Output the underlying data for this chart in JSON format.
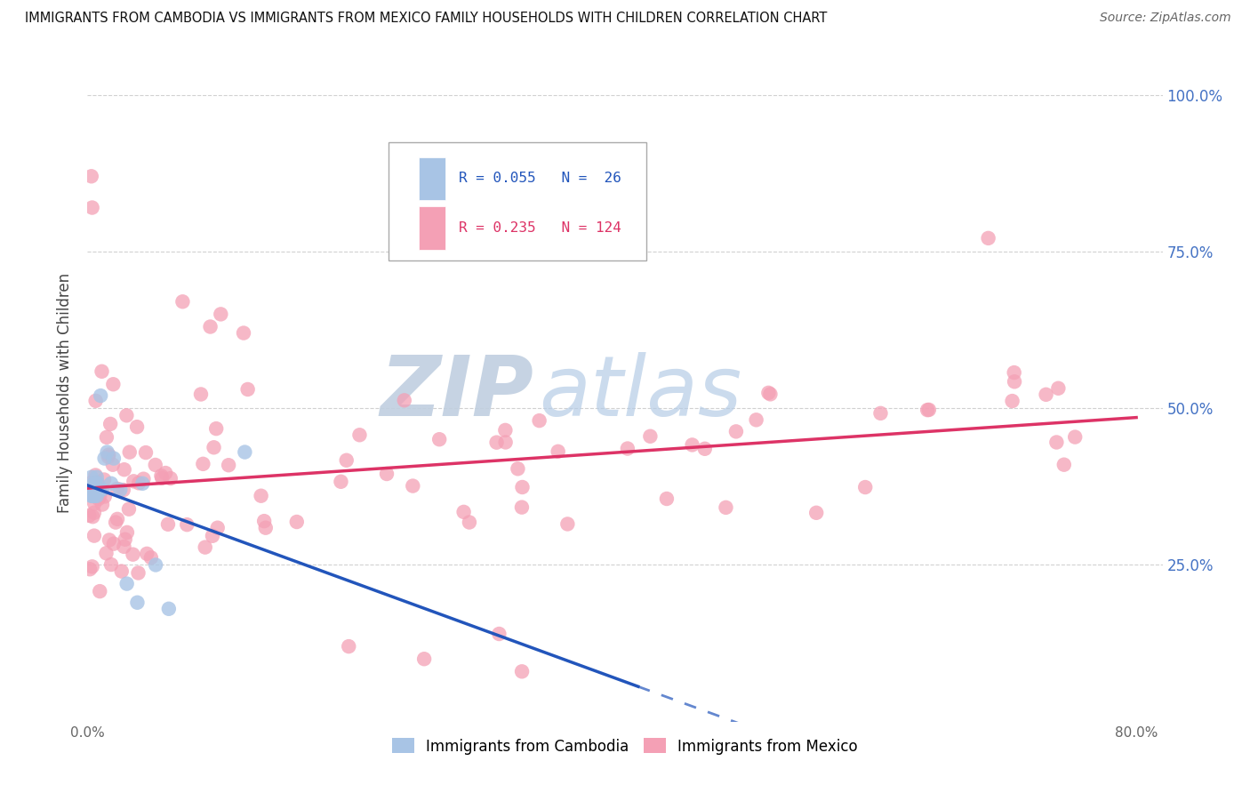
{
  "title": "IMMIGRANTS FROM CAMBODIA VS IMMIGRANTS FROM MEXICO FAMILY HOUSEHOLDS WITH CHILDREN CORRELATION CHART",
  "source": "Source: ZipAtlas.com",
  "ylabel": "Family Households with Children",
  "cambodia_color": "#a8c4e5",
  "mexico_color": "#f4a0b5",
  "cambodia_line_color": "#2255bb",
  "mexico_line_color": "#dd3366",
  "watermark_ZIP": "ZIP",
  "watermark_atlas": "atlas",
  "watermark_ZIP_color": "#c5d5e8",
  "watermark_atlas_color": "#b8cce4",
  "background_color": "#ffffff",
  "grid_color": "#cccccc",
  "cam_R": 0.055,
  "cam_N": 26,
  "mex_R": 0.235,
  "mex_N": 124,
  "xlim_max": 0.82,
  "ylim_max": 1.05,
  "ytick_vals": [
    0.25,
    0.5,
    0.75,
    1.0
  ],
  "ytick_labels": [
    "25.0%",
    "50.0%",
    "75.0%",
    "100.0%"
  ],
  "xtick_vals": [
    0.0,
    0.2,
    0.4,
    0.6,
    0.8
  ],
  "xtick_labels_show": [
    "0.0%",
    "",
    "",
    "",
    "80.0%"
  ]
}
